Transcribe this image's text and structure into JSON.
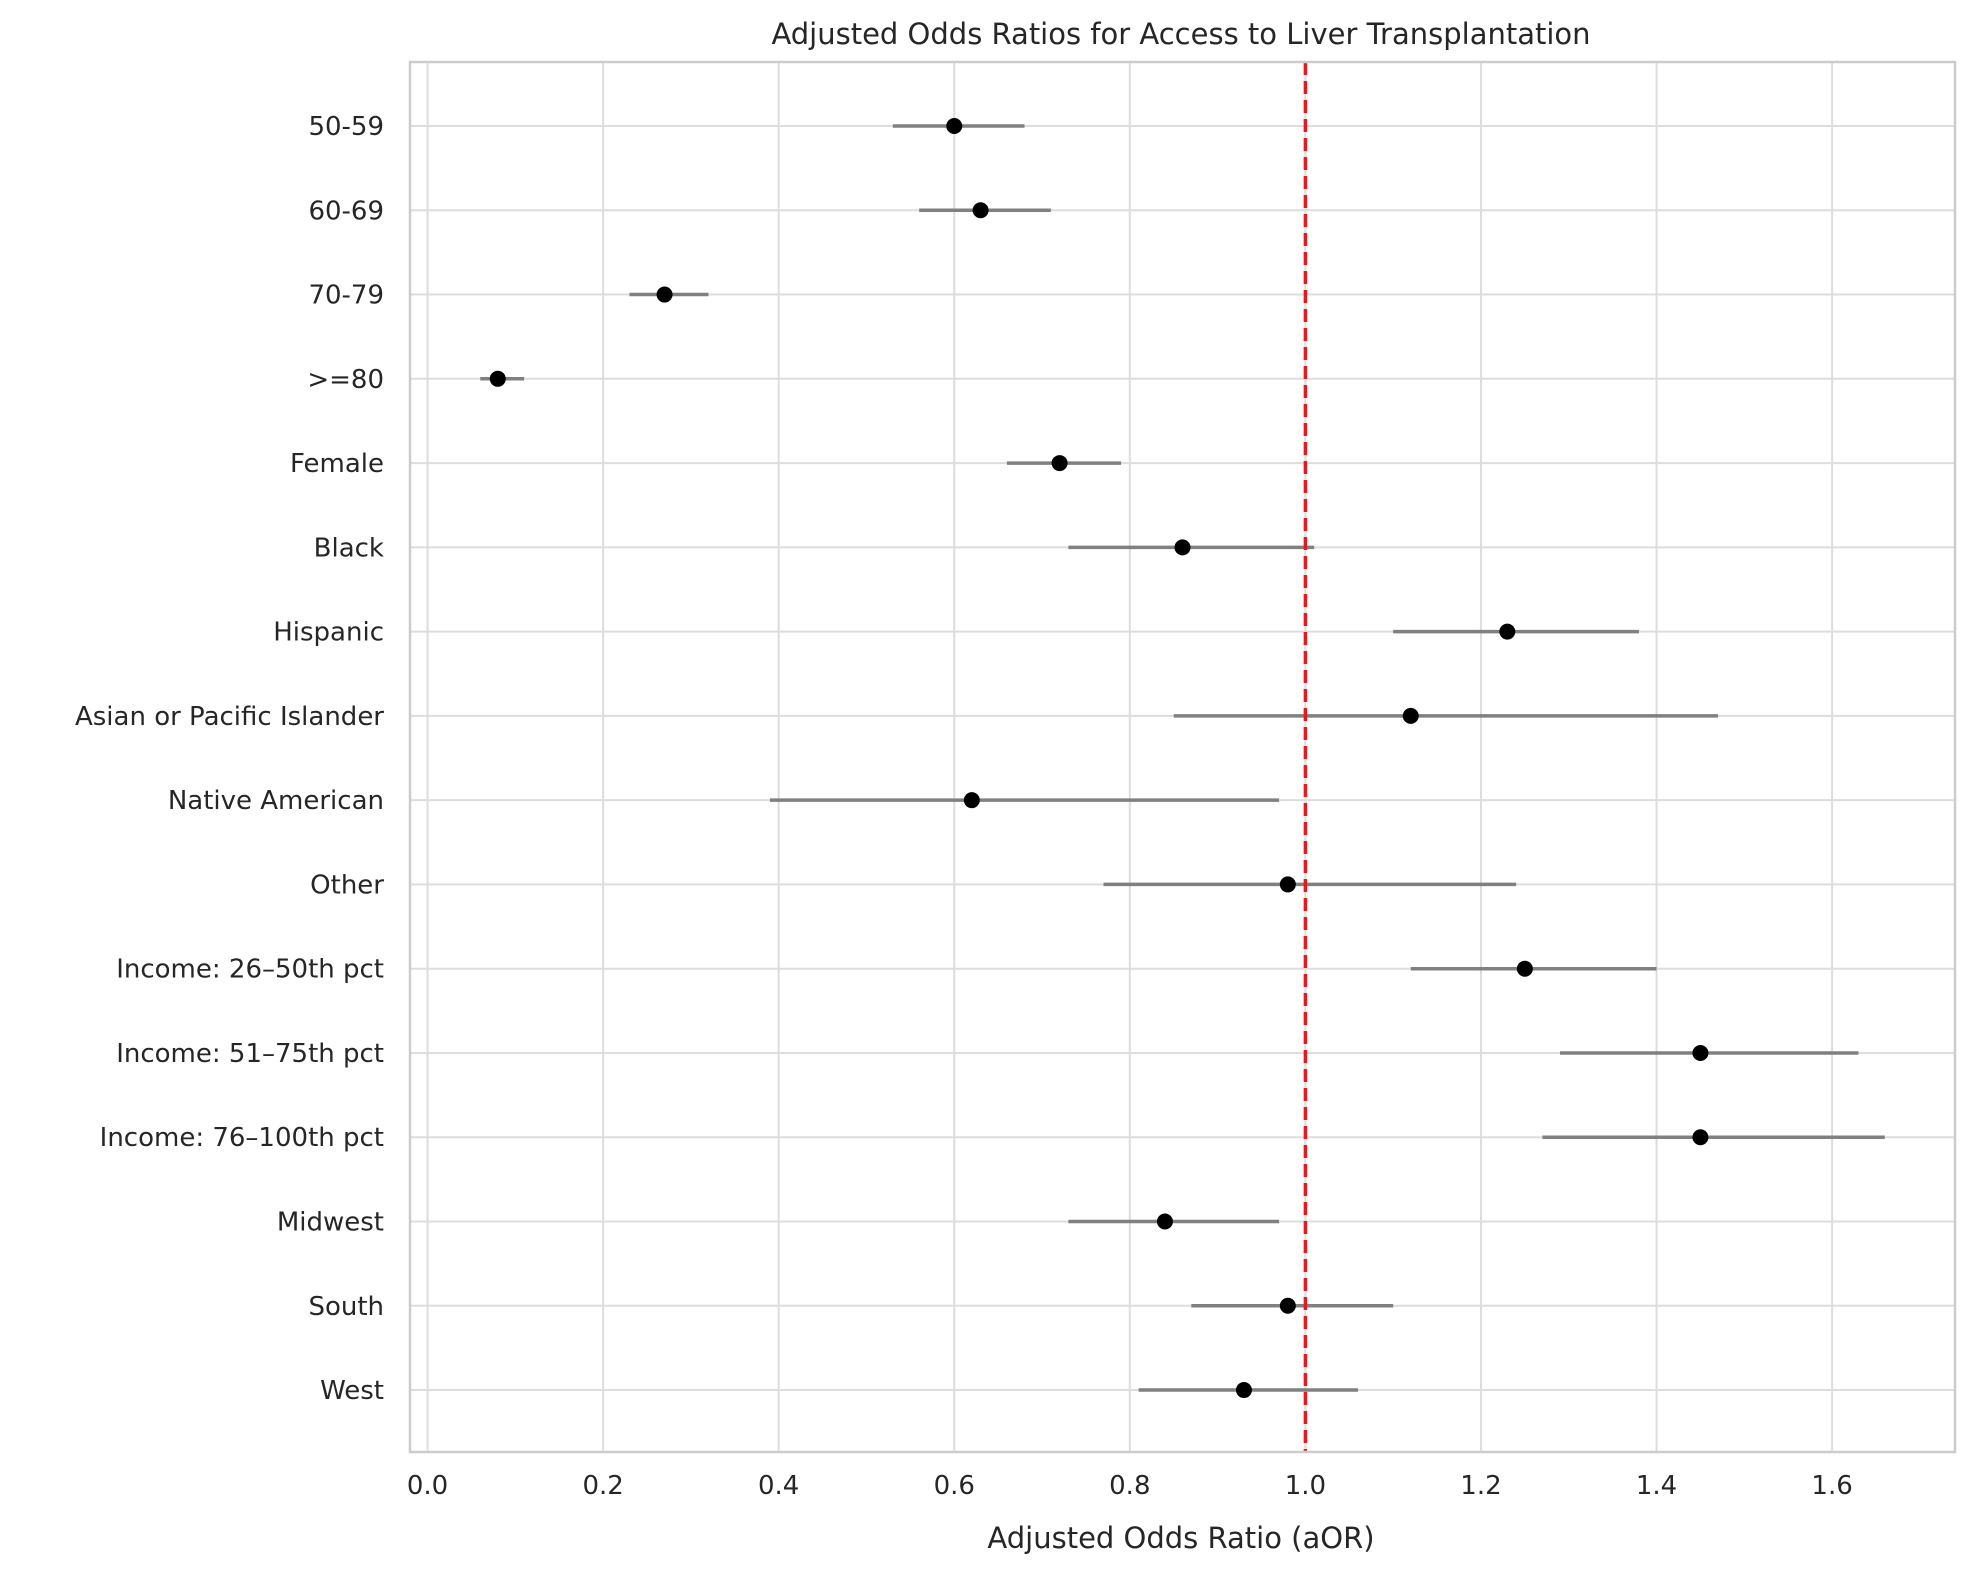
{
  "chart_data": {
    "type": "scatter",
    "title": "Adjusted Odds Ratios for Access to Liver Transplantation",
    "xlabel": "Adjusted Odds Ratio (aOR)",
    "ylabel": "",
    "xlim": [
      -0.02,
      1.74
    ],
    "xticks": [
      0.0,
      0.2,
      0.4,
      0.6,
      0.8,
      1.0,
      1.2,
      1.4,
      1.6
    ],
    "xtick_labels": [
      "0.0",
      "0.2",
      "0.4",
      "0.6",
      "0.8",
      "1.0",
      "1.2",
      "1.4",
      "1.6"
    ],
    "grid": true,
    "reference_line": {
      "x": 1.0,
      "style": "dashed",
      "color": "#e41a1c"
    },
    "categories": [
      "50-59",
      "60-69",
      "70-79",
      ">=80",
      "Female",
      "Black",
      "Hispanic",
      "Asian or Pacific Islander",
      "Native American",
      "Other",
      "Income: 26–50th pct",
      "Income: 51–75th pct",
      "Income: 76–100th pct",
      "Midwest",
      "South",
      "West"
    ],
    "values": [
      0.6,
      0.63,
      0.27,
      0.08,
      0.72,
      0.86,
      1.23,
      1.12,
      0.62,
      0.98,
      1.25,
      1.45,
      1.45,
      0.84,
      0.98,
      0.93
    ],
    "ci_lower": [
      0.53,
      0.56,
      0.23,
      0.06,
      0.66,
      0.73,
      1.1,
      0.85,
      0.39,
      0.77,
      1.12,
      1.29,
      1.27,
      0.73,
      0.87,
      0.81
    ],
    "ci_upper": [
      0.68,
      0.71,
      0.32,
      0.11,
      0.79,
      1.01,
      1.38,
      1.47,
      0.97,
      1.24,
      1.4,
      1.63,
      1.66,
      0.97,
      1.1,
      1.06
    ],
    "colors": {
      "point": "#000000",
      "ci": "#808080",
      "grid": "#dddddd",
      "spine": "#cccccc",
      "text": "#262626"
    }
  }
}
